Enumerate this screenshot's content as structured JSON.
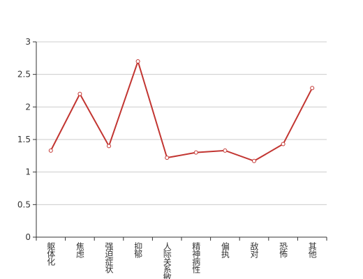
{
  "chart_data": {
    "type": "line",
    "categories": [
      "躯体化",
      "焦虑",
      "强迫症状",
      "抑郁",
      "人际关系敏感",
      "精神病性",
      "偏执",
      "敌对",
      "恐怖",
      "其他"
    ],
    "series": [
      {
        "name": null,
        "color": "#c23531",
        "values": [
          1.33,
          2.2,
          1.4,
          2.7,
          1.22,
          1.3,
          1.33,
          1.17,
          1.43,
          2.29
        ]
      }
    ],
    "ylim": [
      0,
      3
    ],
    "yticks": [
      0,
      0.5,
      1,
      1.5,
      2,
      2.5,
      3
    ],
    "grid": true
  }
}
